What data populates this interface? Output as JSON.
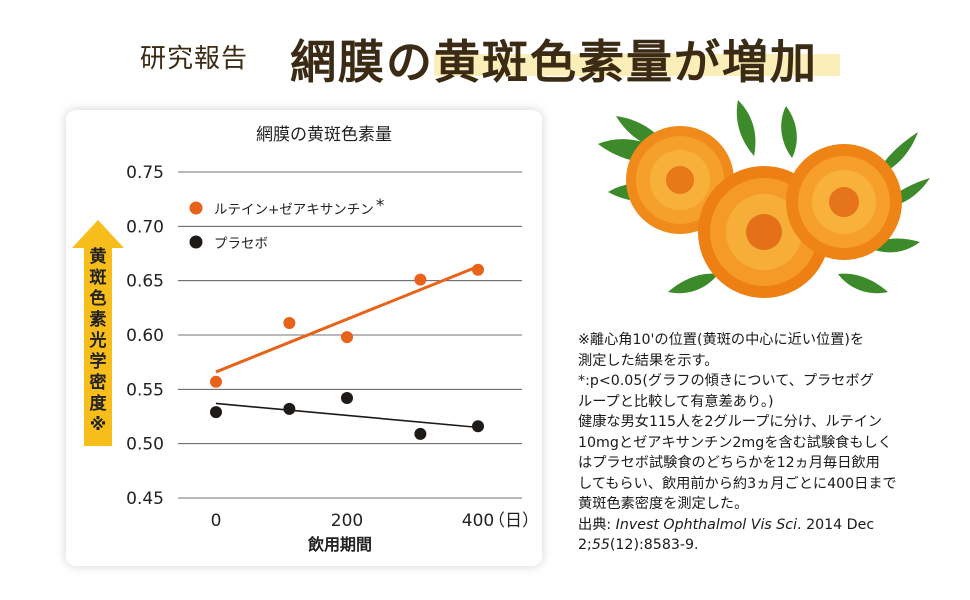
{
  "heading": {
    "small": "研究報告",
    "big": "網膜の黄斑色素量が増加"
  },
  "chart_data": {
    "type": "scatter",
    "title": "網膜の黄斑色素量",
    "xlabel": "飲用期間",
    "x_unit": "（日）",
    "ylabel": "黄斑色素光学密度※",
    "xlim": [
      0,
      400
    ],
    "ylim": [
      0.45,
      0.75
    ],
    "x_ticks": [
      0,
      200,
      400
    ],
    "y_ticks": [
      0.45,
      0.5,
      0.55,
      0.6,
      0.65,
      0.7,
      0.75
    ],
    "y_tick_labels": [
      "0.45",
      "0.50",
      "0.55",
      "0.60",
      "0.65",
      "0.70",
      "0.75"
    ],
    "grid": "horizontal",
    "legend_position": "top-left",
    "series": [
      {
        "name": "ルテイン+ゼアキサンチン",
        "name_mark": "*",
        "color": "#e8621a",
        "x": [
          0,
          112,
          200,
          312,
          400
        ],
        "y": [
          0.557,
          0.611,
          0.598,
          0.651,
          0.66
        ],
        "trend": [
          [
            0,
            0.566
          ],
          [
            400,
            0.663
          ]
        ]
      },
      {
        "name": "プラセボ",
        "color": "#1e1a17",
        "x": [
          0,
          112,
          200,
          312,
          400
        ],
        "y": [
          0.529,
          0.532,
          0.542,
          0.509,
          0.516
        ],
        "trend": [
          [
            0,
            0.537
          ],
          [
            400,
            0.515
          ]
        ]
      }
    ]
  },
  "notes": {
    "lines": [
      "※離心角10'の位置(黄斑の中心に近い位置)を",
      "測定した結果を示す。",
      "*:p<0.05(グラフの傾きについて、プラセボグ",
      "ループと比較して有意差あり。)",
      "健康な男女115人を2グループに分け、ルテイン",
      "10mgとゼアキサンチン2mgを含む試験食もしく",
      "はプラセボ試験食のどちらかを12ヵ月毎日飲用",
      "してもらい、飲用前から約3ヵ月ごとに400日まで",
      "黄斑色素密度を測定した。"
    ],
    "source_label": "出典: ",
    "source_journal": "Invest Ophthalmol Vis Sci",
    "source_rest": ". 2014 Dec",
    "source_line2a": "2;",
    "source_volume": "55",
    "source_line2b": "(12):8583-9."
  },
  "colors": {
    "accent_orange": "#e8621a",
    "placebo_dark": "#1e1a17",
    "arrow_yellow": "#f6bd1b",
    "heading_brown": "#3b2a14",
    "highlight": "#fbeeb8"
  },
  "image": {
    "flower_icon": "marigold-flowers-icon"
  }
}
